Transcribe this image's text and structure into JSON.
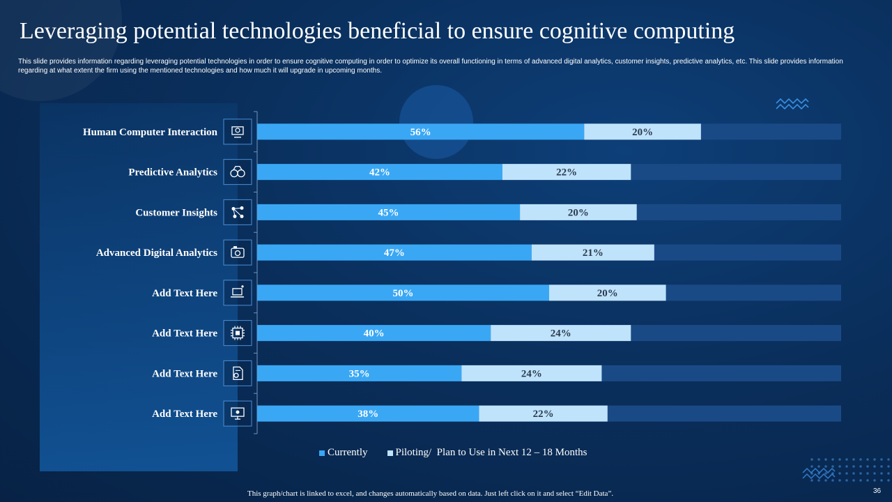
{
  "slide": {
    "title": "Leveraging potential technologies beneficial to ensure cognitive computing",
    "subtitle": "This slide provides information regarding leveraging potential technologies in order to ensure cognitive computing in order to optimize its overall functioning in terms of advanced digital analytics, customer insights, predictive analytics, etc. This slide provides information regarding at what extent the firm using the mentioned technologies and how much it will upgrade in upcoming months.",
    "footnote": "This graph/chart is linked to excel,  and changes automatically based on data. Just left click on it and select “Edit Data”.",
    "page_number": "36"
  },
  "colors": {
    "currently": "#3aa7f4",
    "piloting": "#bfe3fb",
    "remainder": "#1a4a86",
    "axis": "#6f93bd",
    "icon_border": "#4b8fd6"
  },
  "chart_data": {
    "type": "bar",
    "orientation": "horizontal",
    "stacked": true,
    "categories": [
      "Human Computer Interaction",
      "Predictive Analytics",
      "Customer Insights",
      "Advanced Digital Analytics",
      "Add Text Here",
      "Add Text Here",
      "Add Text Here",
      "Add Text Here"
    ],
    "icons": [
      "robot-screen-icon",
      "binoculars-icon",
      "network-nodes-icon",
      "analytics-camera-icon",
      "laptop-icon",
      "chip-icon",
      "document-gear-icon",
      "ai-monitor-icon"
    ],
    "series": [
      {
        "name": "Currently",
        "values": [
          56,
          42,
          45,
          47,
          50,
          40,
          35,
          38
        ],
        "labels": [
          "56%",
          "42%",
          "45%",
          "47%",
          "50%",
          "40%",
          "35%",
          "38%"
        ]
      },
      {
        "name": "Piloting/  Plan to Use in Next 12 – 18 Months",
        "values": [
          20,
          22,
          20,
          21,
          20,
          24,
          24,
          22
        ],
        "labels": [
          "20%",
          "22%",
          "20%",
          "21%",
          "20%",
          "24%",
          "24%",
          "22%"
        ]
      }
    ],
    "xlim": [
      0,
      100
    ],
    "legend_position": "bottom"
  }
}
